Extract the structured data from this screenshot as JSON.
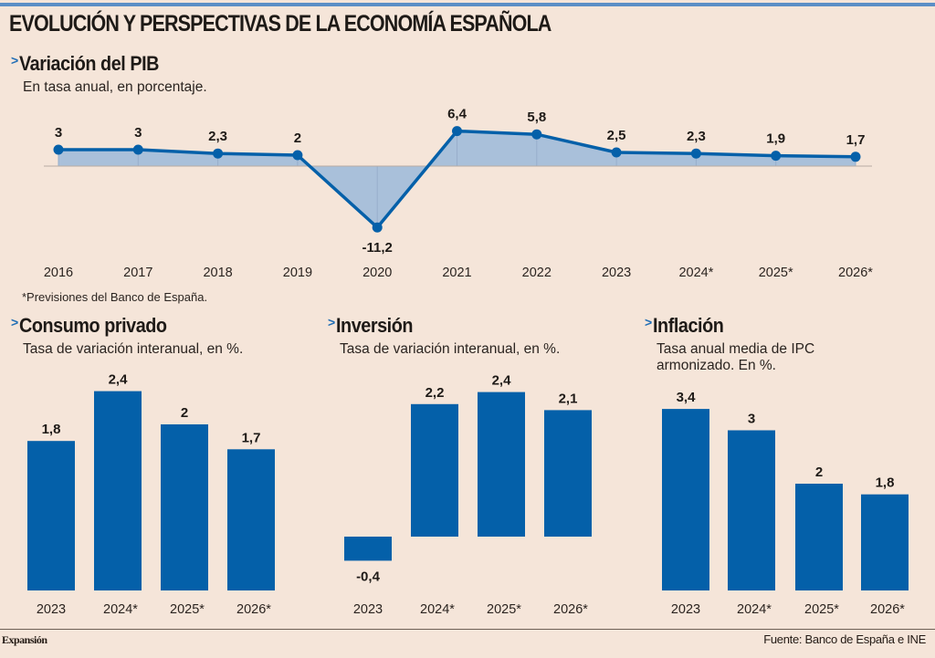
{
  "header": {
    "title": "EVOLUCIÓN Y PERSPECTIVAS DE LA ECONOMÍA ESPAÑOLA",
    "accent_color": "#5b8ec6",
    "bullet": ">"
  },
  "colors": {
    "background": "#f5e5d9",
    "bar": "#0460a9",
    "line": "#0460a9",
    "area": "#a9c0da",
    "axis": "#b8aca4"
  },
  "chart_data": [
    {
      "id": "pib",
      "type": "area",
      "title": "Variación del PIB",
      "subtitle": "En tasa anual, en porcentaje.",
      "categories": [
        "2016",
        "2017",
        "2018",
        "2019",
        "2020",
        "2021",
        "2022",
        "2023",
        "2024*",
        "2025*",
        "2026*"
      ],
      "values": [
        3,
        3,
        2.3,
        2,
        -11.2,
        6.4,
        5.8,
        2.5,
        2.3,
        1.9,
        1.7
      ],
      "labels": [
        "3",
        "3",
        "2,3",
        "2",
        "-11,2",
        "6,4",
        "5,8",
        "2,5",
        "2,3",
        "1,9",
        "1,7"
      ],
      "xlabel": "",
      "ylabel": "",
      "note": "*Previsiones del Banco de España."
    },
    {
      "id": "consumo",
      "type": "bar",
      "title": "Consumo privado",
      "subtitle": [
        "Tasa de variación interanual, en %."
      ],
      "categories": [
        "2023",
        "2024*",
        "2025*",
        "2026*"
      ],
      "values": [
        1.8,
        2.4,
        2,
        1.7
      ],
      "labels": [
        "1,8",
        "2,4",
        "2",
        "1,7"
      ]
    },
    {
      "id": "inversion",
      "type": "bar",
      "title": "Inversión",
      "subtitle": [
        "Tasa de variación interanual, en %."
      ],
      "categories": [
        "2023",
        "2024*",
        "2025*",
        "2026*"
      ],
      "values": [
        -0.4,
        2.2,
        2.4,
        2.1
      ],
      "labels": [
        "-0,4",
        "2,2",
        "2,4",
        "2,1"
      ]
    },
    {
      "id": "inflacion",
      "type": "bar",
      "title": "Inflación",
      "subtitle": [
        "Tasa anual media de IPC",
        "armonizado. En %."
      ],
      "categories": [
        "2023",
        "2024*",
        "2025*",
        "2026*"
      ],
      "values": [
        3.4,
        3,
        2,
        1.8
      ],
      "labels": [
        "3,4",
        "3",
        "2",
        "1,8"
      ]
    }
  ],
  "footer": {
    "brand": "Expansión",
    "source": "Fuente: Banco de España e INE"
  }
}
